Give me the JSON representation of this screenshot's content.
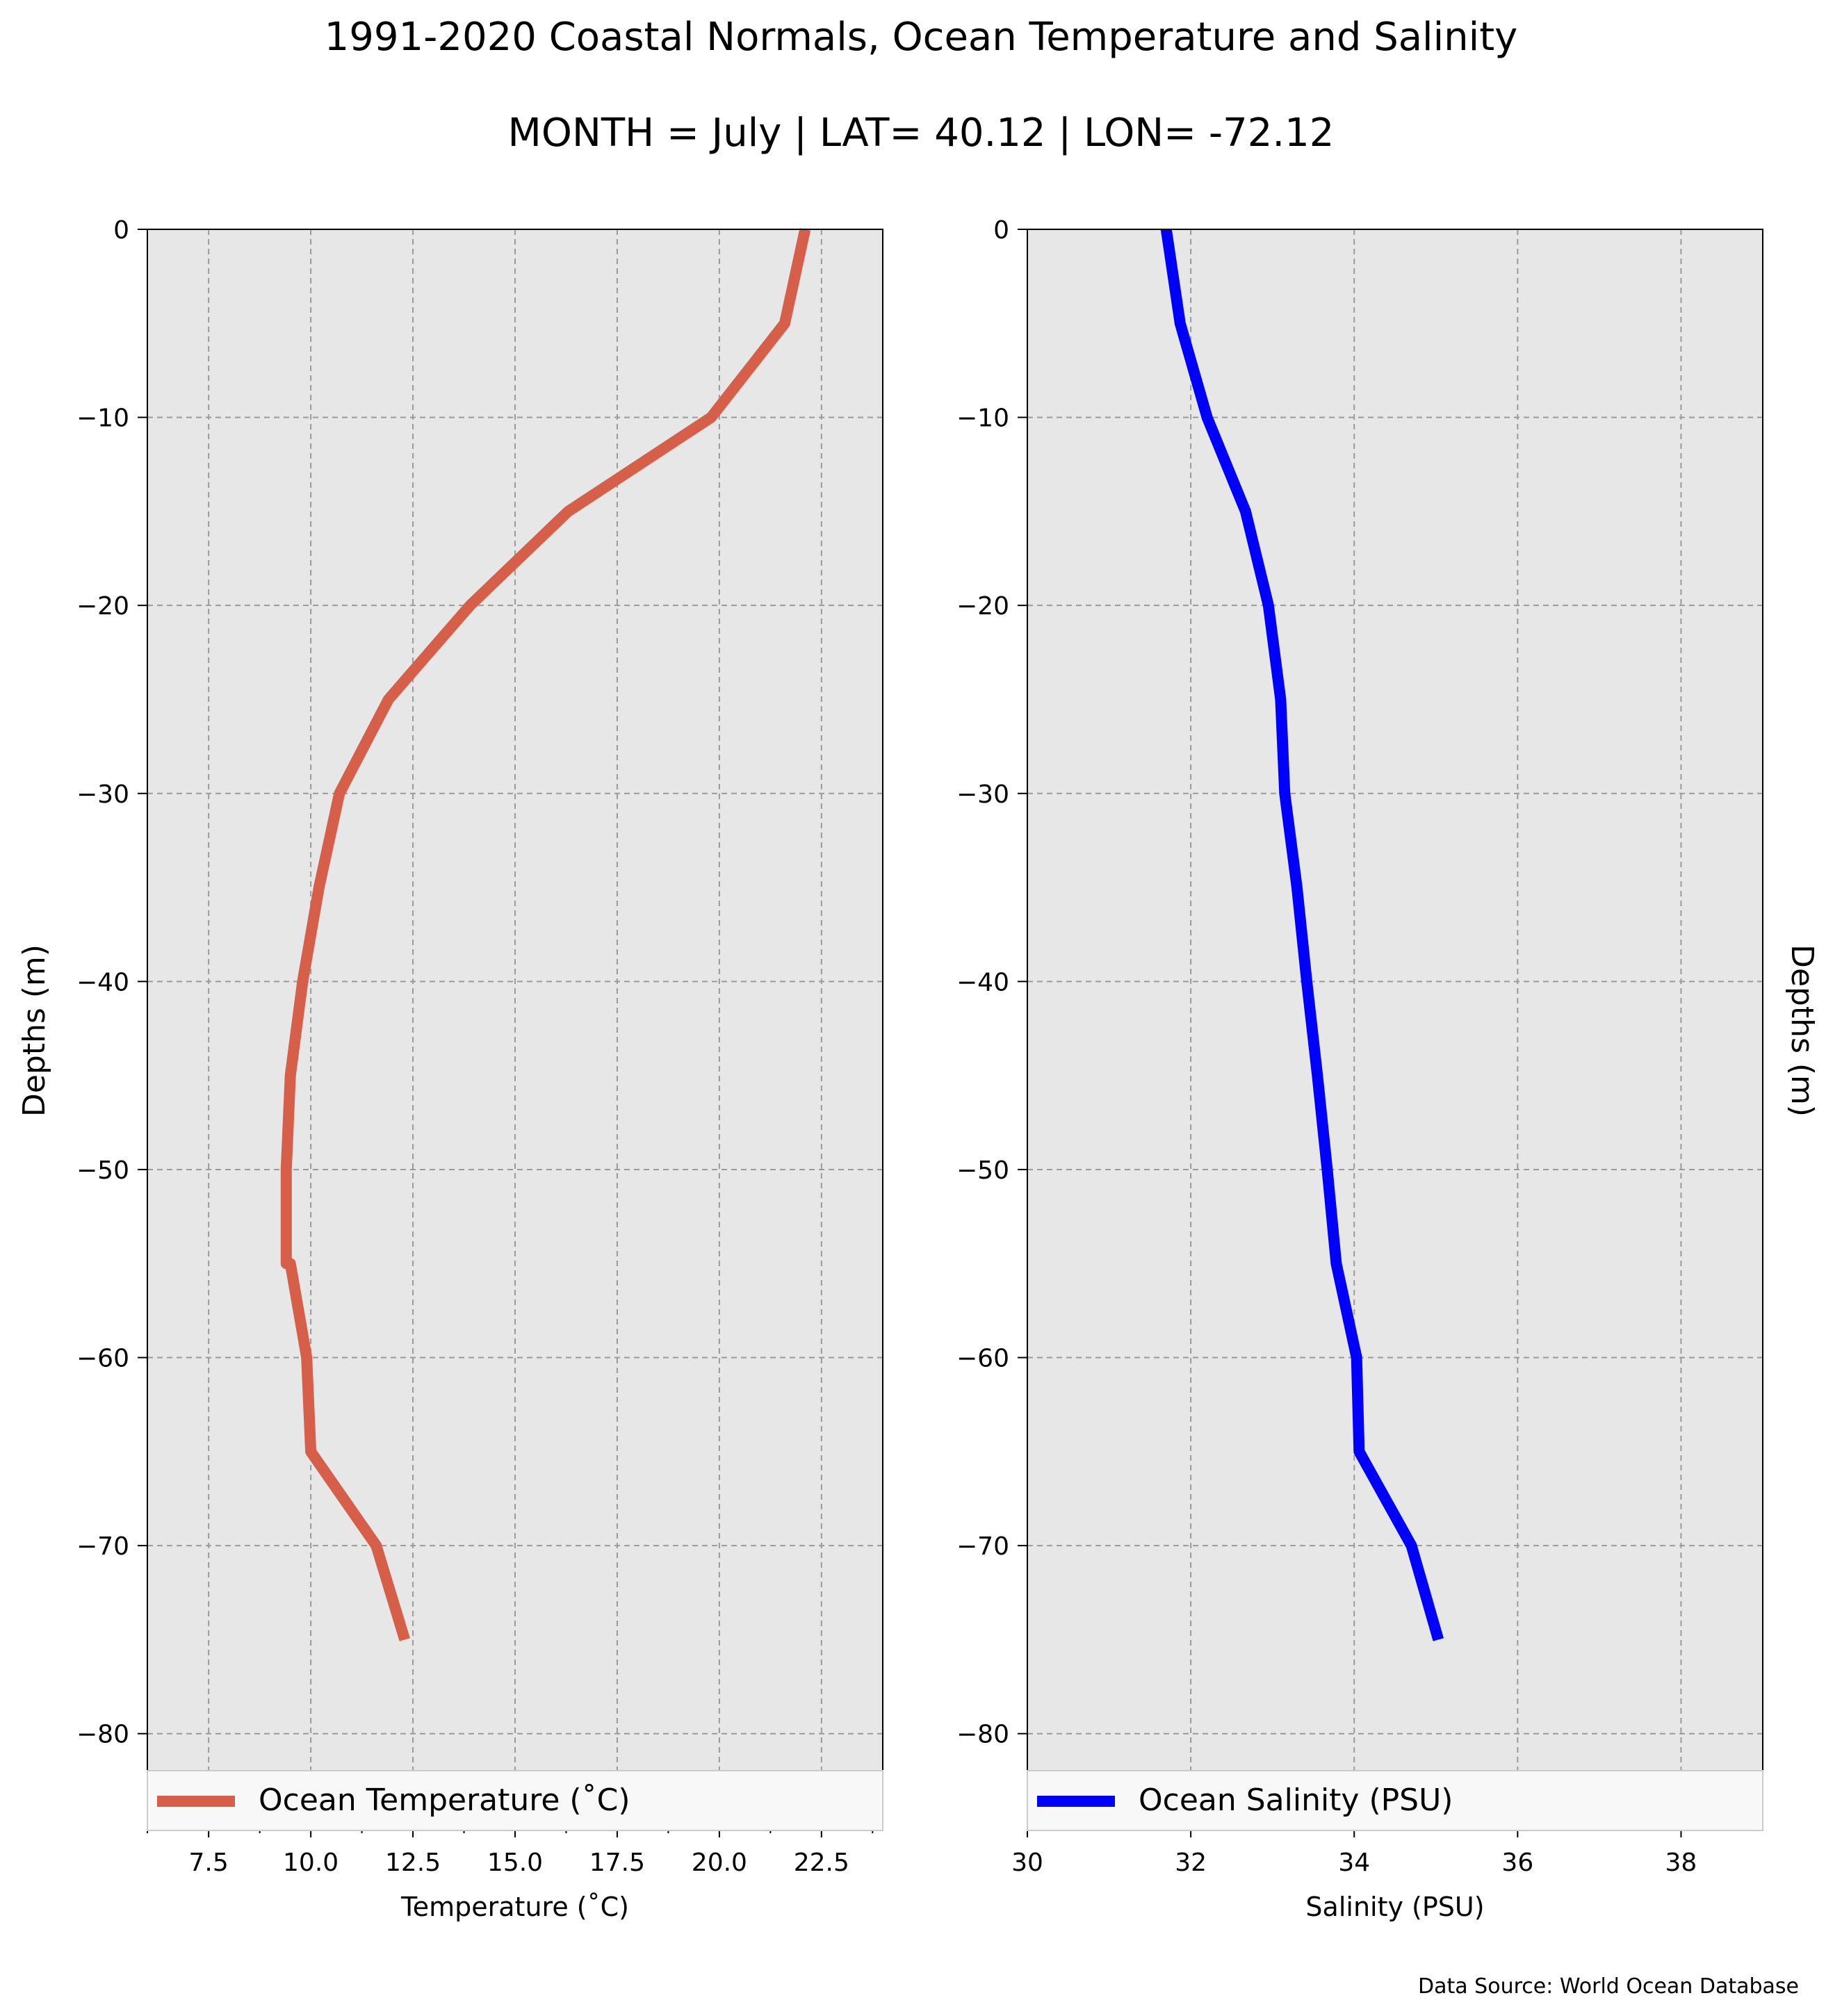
{
  "figure": {
    "title": "1991-2020 Coastal Normals, Ocean Temperature and Salinity",
    "subtitle": "MONTH = July | LAT= 40.12 | LON= -72.12",
    "source": "Data Source: World Ocean Database"
  },
  "chart_data": [
    {
      "type": "line",
      "xlabel": "Temperature ($^\\circ$C)",
      "xlabel_display": "Temperature (˚C)",
      "ylabel": "Depths (m)",
      "xlim": [
        6,
        24
      ],
      "ylim": [
        -85,
        0
      ],
      "xticks": [
        7.5,
        10.0,
        12.5,
        15.0,
        17.5,
        20.0,
        22.5
      ],
      "xtick_labels": [
        "7.5",
        "10.0",
        "12.5",
        "15.0",
        "17.5",
        "20.0",
        "22.5"
      ],
      "x_minor_ticks": [
        6,
        8.75,
        11.25,
        13.75,
        16.25,
        18.75,
        21.25,
        23.75
      ],
      "yticks": [
        0,
        -10,
        -20,
        -30,
        -40,
        -50,
        -60,
        -70,
        -80
      ],
      "ytick_labels": [
        "0",
        "−10",
        "−20",
        "−30",
        "−40",
        "−50",
        "−60",
        "−70",
        "−80"
      ],
      "grid": true,
      "legend": "bottom",
      "series": [
        {
          "name": "Ocean Temperature (˚C)",
          "color": "#d65f4a",
          "x": [
            22.1,
            21.6,
            19.8,
            16.3,
            13.9,
            11.9,
            10.7,
            10.2,
            9.8,
            9.5,
            9.4,
            9.4,
            9.5,
            9.9,
            10.0,
            11.6,
            12.3
          ],
          "y": [
            0,
            -5,
            -10,
            -15,
            -20,
            -25,
            -30,
            -35,
            -40,
            -45,
            -50,
            -55,
            -55,
            -60,
            -65,
            -70,
            -75
          ]
        }
      ]
    },
    {
      "type": "line",
      "xlabel": "Salinity (PSU)",
      "ylabel": "Depths (m)",
      "ylabel_side": "right",
      "xlim": [
        30,
        39
      ],
      "ylim": [
        -85,
        0
      ],
      "xticks": [
        30,
        32,
        34,
        36,
        38
      ],
      "xtick_labels": [
        "30",
        "32",
        "34",
        "36",
        "38"
      ],
      "yticks": [
        0,
        -10,
        -20,
        -30,
        -40,
        -50,
        -60,
        -70,
        -80
      ],
      "ytick_labels": [
        "0",
        "−10",
        "−20",
        "−30",
        "−40",
        "−50",
        "−60",
        "−70",
        "−80"
      ],
      "grid": true,
      "legend": "bottom",
      "series": [
        {
          "name": "Ocean Salinity (PSU)",
          "color": "#0000ff",
          "x": [
            31.7,
            31.87,
            32.2,
            32.67,
            32.95,
            33.1,
            33.15,
            33.3,
            33.42,
            33.55,
            33.67,
            33.78,
            34.03,
            34.06,
            34.7,
            35.03
          ],
          "y": [
            0,
            -5,
            -10,
            -15,
            -20,
            -25,
            -30,
            -35,
            -40,
            -45,
            -50,
            -55,
            -60,
            -65,
            -70,
            -75
          ]
        }
      ]
    }
  ]
}
